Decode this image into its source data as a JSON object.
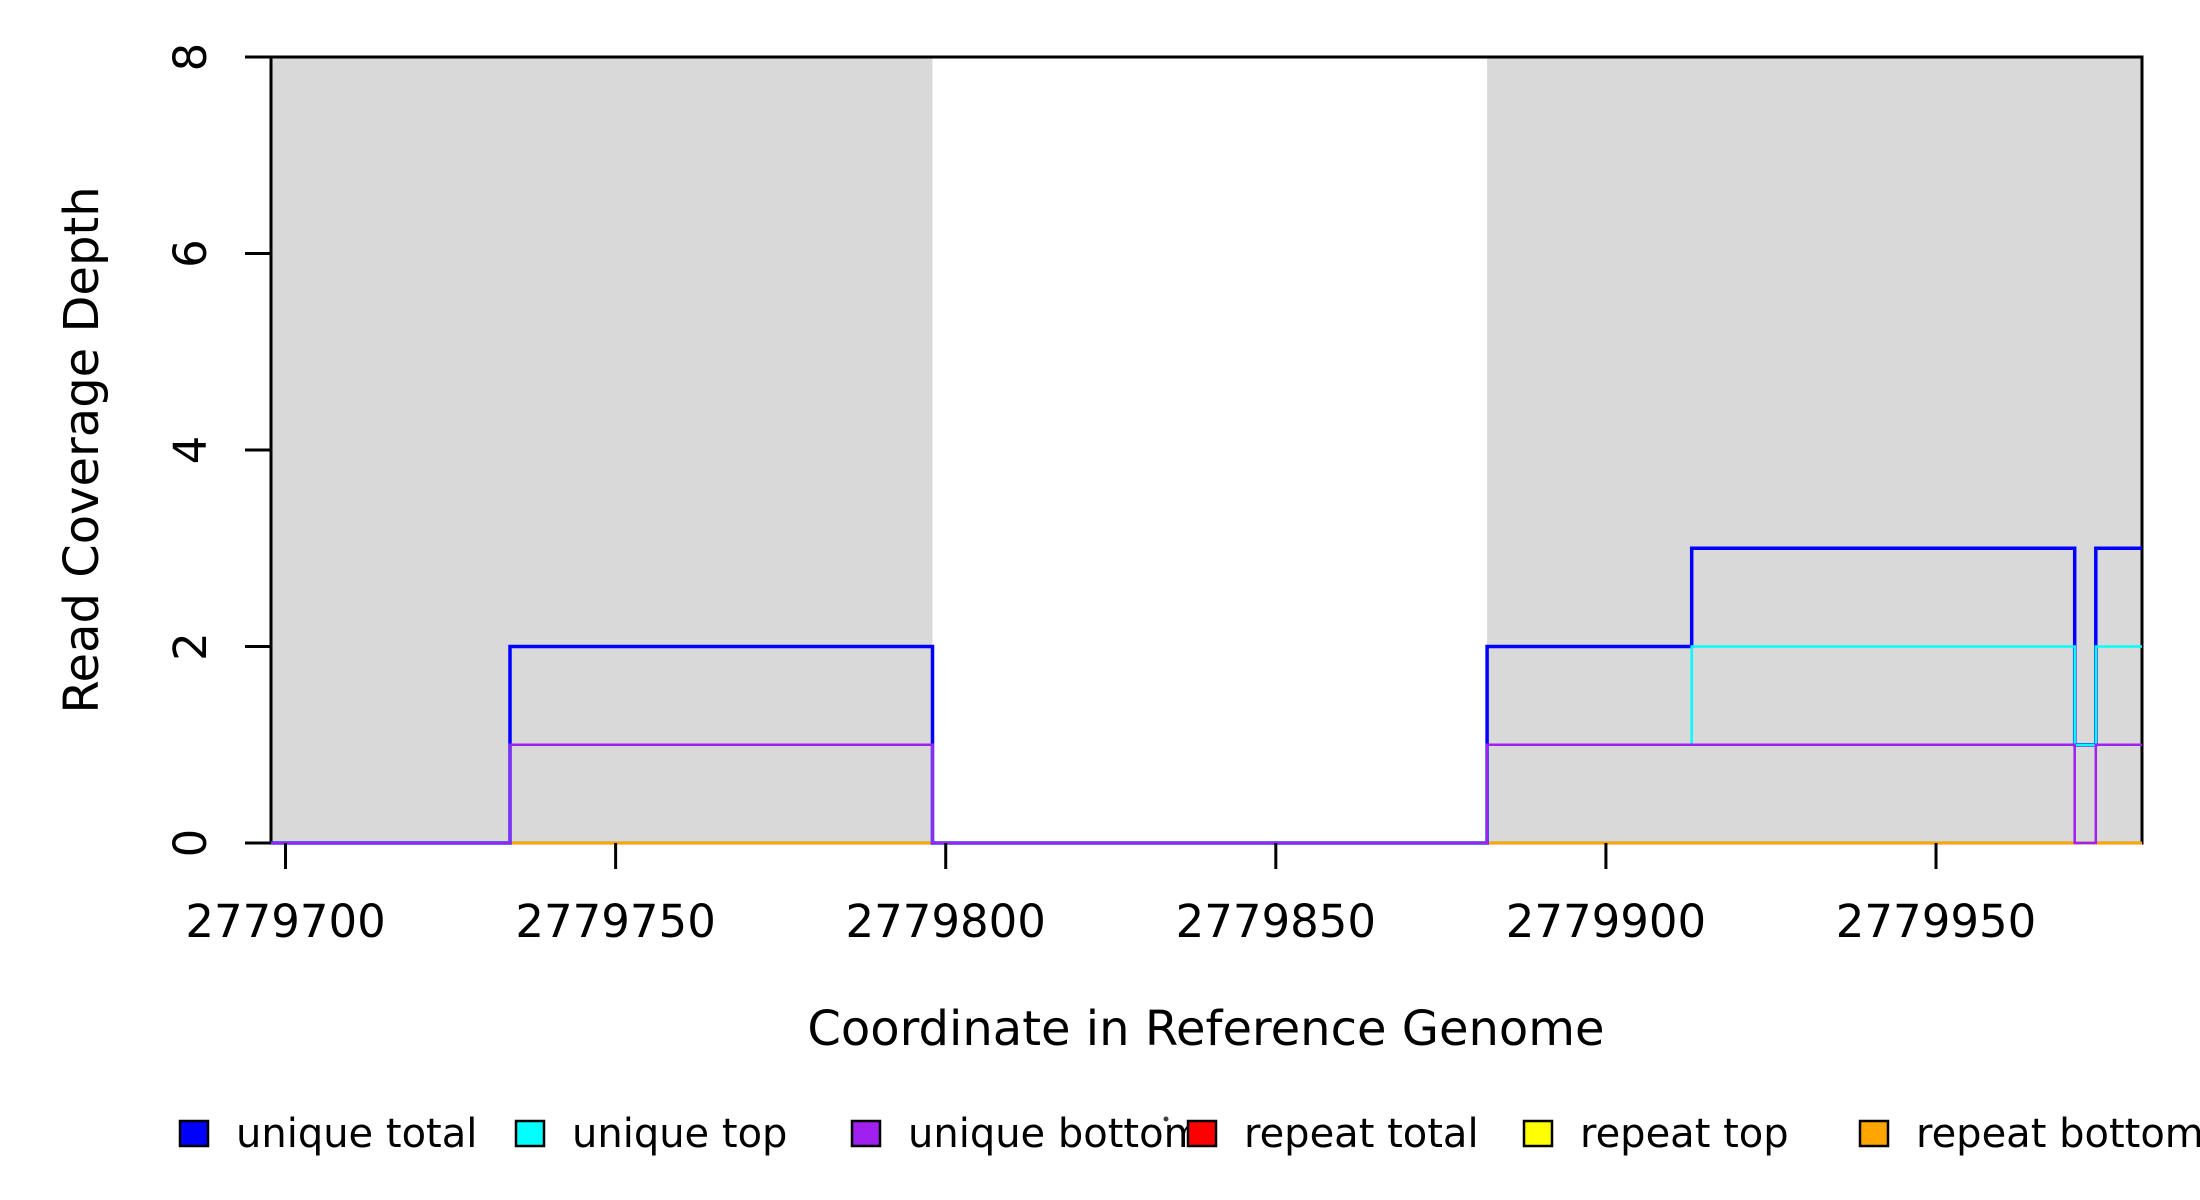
{
  "chart_data": {
    "type": "line",
    "subtype": "step-coverage-plot",
    "title": "",
    "xlabel": "Coordinate in Reference Genome",
    "ylabel": "Read Coverage Depth",
    "xlim": [
      2779697.8,
      2779981.2
    ],
    "ylim": [
      0,
      8
    ],
    "x_ticks": [
      2779700,
      2779750,
      2779800,
      2779850,
      2779900,
      2779950
    ],
    "y_ticks": [
      0,
      2,
      4,
      6,
      8
    ],
    "grid": false,
    "plot_background": "#FFFFFF",
    "shaded_regions": [
      {
        "start": 2779697.8,
        "end": 2779798,
        "color": "#D9D9D9"
      },
      {
        "start": 2779882,
        "end": 2779981.2,
        "color": "#D9D9D9"
      }
    ],
    "draw_order": [
      "repeat total",
      "repeat top",
      "repeat bottom",
      "unique total",
      "unique top",
      "unique bottom"
    ],
    "series": [
      {
        "name": "unique total",
        "color": "#0000FF",
        "lwd": 3.5,
        "step": "after",
        "points": [
          [
            2779697.8,
            0
          ],
          [
            2779734,
            2
          ],
          [
            2779798,
            0
          ],
          [
            2779882,
            2
          ],
          [
            2779913,
            3
          ],
          [
            2779971,
            1
          ],
          [
            2779974.2,
            3
          ]
        ]
      },
      {
        "name": "unique top",
        "color": "#00FFFF",
        "lwd": 2.5,
        "step": "after",
        "points": [
          [
            2779697.8,
            0
          ],
          [
            2779734,
            1
          ],
          [
            2779798,
            0
          ],
          [
            2779882,
            1
          ],
          [
            2779913,
            2
          ],
          [
            2779971,
            1
          ],
          [
            2779974.2,
            2
          ]
        ]
      },
      {
        "name": "unique bottom",
        "color": "#A020F0",
        "lwd": 2.5,
        "step": "after",
        "points": [
          [
            2779697.8,
            0
          ],
          [
            2779734,
            1
          ],
          [
            2779798,
            0
          ],
          [
            2779882,
            1
          ],
          [
            2779971,
            0
          ],
          [
            2779974.2,
            1
          ]
        ]
      },
      {
        "name": "repeat total",
        "color": "#FF0000",
        "lwd": 2.5,
        "step": "after",
        "points": [
          [
            2779697.8,
            0
          ]
        ]
      },
      {
        "name": "repeat top",
        "color": "#FFFF00",
        "lwd": 2.5,
        "step": "after",
        "points": [
          [
            2779697.8,
            0
          ]
        ]
      },
      {
        "name": "repeat bottom",
        "color": "#FFA500",
        "lwd": 2.5,
        "step": "after",
        "points": [
          [
            2779697.8,
            0
          ]
        ]
      }
    ],
    "legend": {
      "position": "bottom",
      "items": [
        {
          "label": "unique total",
          "color": "#0000FF"
        },
        {
          "label": "unique top",
          "color": "#00FFFF"
        },
        {
          "label": "unique bottom",
          "color": "#A020F0"
        },
        {
          "label": "repeat total",
          "color": "#FF0000"
        },
        {
          "label": "repeat top",
          "color": "#FFFF00"
        },
        {
          "label": "repeat bottom",
          "color": "#FFA500"
        }
      ],
      "stray_dot": true
    }
  }
}
